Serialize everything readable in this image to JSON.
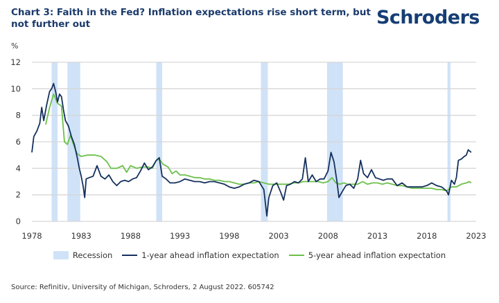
{
  "header": {
    "title": "Chart 3: Faith in the Fed? Inflation expectations rise short term, but not further out",
    "logo": "Schroders"
  },
  "footer": {
    "source": "Source: Refinitiv, University of Michigan, Schroders, 2 August 2022. 605742"
  },
  "colors": {
    "one_year": "#14305e",
    "five_year": "#6cc04a",
    "recession": "#cfe2f7",
    "grid": "#d6d6d6"
  },
  "chart_data": {
    "type": "line",
    "title": "Chart 3: Faith in the Fed? Inflation expectations rise short term, but not further out",
    "ylabel": "%",
    "xlabel": "",
    "xlim": [
      1978,
      2023
    ],
    "ylim": [
      0,
      12
    ],
    "x_ticks": [
      "1978",
      "1983",
      "1988",
      "1993",
      "1998",
      "2003",
      "2008",
      "2013",
      "2018",
      "2023"
    ],
    "y_ticks": [
      "0",
      "2",
      "4",
      "6",
      "8",
      "10",
      "12"
    ],
    "grid": "horizontal",
    "legend_position": "bottom",
    "legend": [
      "Recession",
      "1-year ahead inflation expectation",
      "5-year ahead inflation expectation"
    ],
    "recessions": [
      [
        1980.0,
        1980.6
      ],
      [
        1981.6,
        1982.9
      ],
      [
        1990.6,
        1991.2
      ],
      [
        2001.2,
        2001.9
      ],
      [
        2007.9,
        2009.5
      ],
      [
        2020.1,
        2020.4
      ]
    ],
    "series": [
      {
        "name": "1-year ahead inflation expectation",
        "points": [
          [
            1978.0,
            5.2
          ],
          [
            1978.2,
            6.4
          ],
          [
            1978.5,
            6.8
          ],
          [
            1978.8,
            7.4
          ],
          [
            1979.0,
            8.6
          ],
          [
            1979.2,
            7.6
          ],
          [
            1979.5,
            8.8
          ],
          [
            1979.8,
            9.8
          ],
          [
            1980.0,
            10.0
          ],
          [
            1980.2,
            10.4
          ],
          [
            1980.4,
            9.8
          ],
          [
            1980.6,
            9.0
          ],
          [
            1980.8,
            9.6
          ],
          [
            1981.0,
            9.4
          ],
          [
            1981.2,
            8.4
          ],
          [
            1981.4,
            7.6
          ],
          [
            1981.7,
            7.2
          ],
          [
            1982.0,
            6.4
          ],
          [
            1982.3,
            5.8
          ],
          [
            1982.6,
            4.8
          ],
          [
            1982.8,
            4.0
          ],
          [
            1983.0,
            3.4
          ],
          [
            1983.2,
            2.6
          ],
          [
            1983.35,
            1.8
          ],
          [
            1983.5,
            3.2
          ],
          [
            1983.8,
            3.3
          ],
          [
            1984.2,
            3.4
          ],
          [
            1984.6,
            4.2
          ],
          [
            1985.0,
            3.4
          ],
          [
            1985.4,
            3.2
          ],
          [
            1985.8,
            3.5
          ],
          [
            1986.2,
            3.0
          ],
          [
            1986.6,
            2.7
          ],
          [
            1987.0,
            3.0
          ],
          [
            1987.4,
            3.1
          ],
          [
            1987.8,
            3.0
          ],
          [
            1988.2,
            3.2
          ],
          [
            1988.6,
            3.3
          ],
          [
            1989.0,
            3.8
          ],
          [
            1989.4,
            4.4
          ],
          [
            1989.8,
            3.9
          ],
          [
            1990.2,
            4.1
          ],
          [
            1990.6,
            4.6
          ],
          [
            1990.9,
            4.8
          ],
          [
            1991.2,
            3.4
          ],
          [
            1991.6,
            3.2
          ],
          [
            1992.0,
            2.9
          ],
          [
            1992.5,
            2.9
          ],
          [
            1993.0,
            3.0
          ],
          [
            1993.5,
            3.2
          ],
          [
            1994.0,
            3.1
          ],
          [
            1994.5,
            3.0
          ],
          [
            1995.0,
            3.0
          ],
          [
            1995.5,
            2.9
          ],
          [
            1996.0,
            3.0
          ],
          [
            1996.5,
            3.0
          ],
          [
            1997.0,
            2.9
          ],
          [
            1997.5,
            2.8
          ],
          [
            1998.0,
            2.6
          ],
          [
            1998.5,
            2.5
          ],
          [
            1999.0,
            2.6
          ],
          [
            1999.5,
            2.8
          ],
          [
            2000.0,
            2.9
          ],
          [
            2000.5,
            3.1
          ],
          [
            2001.0,
            3.0
          ],
          [
            2001.5,
            2.4
          ],
          [
            2001.8,
            0.4
          ],
          [
            2002.0,
            1.8
          ],
          [
            2002.4,
            2.7
          ],
          [
            2002.8,
            2.9
          ],
          [
            2003.2,
            2.2
          ],
          [
            2003.5,
            1.6
          ],
          [
            2003.8,
            2.7
          ],
          [
            2004.2,
            2.8
          ],
          [
            2004.6,
            3.0
          ],
          [
            2005.0,
            2.9
          ],
          [
            2005.4,
            3.2
          ],
          [
            2005.7,
            4.8
          ],
          [
            2006.0,
            3.0
          ],
          [
            2006.4,
            3.5
          ],
          [
            2006.8,
            3.0
          ],
          [
            2007.2,
            3.2
          ],
          [
            2007.6,
            3.2
          ],
          [
            2008.0,
            3.8
          ],
          [
            2008.3,
            5.2
          ],
          [
            2008.6,
            4.5
          ],
          [
            2008.9,
            3.0
          ],
          [
            2009.1,
            1.8
          ],
          [
            2009.4,
            2.2
          ],
          [
            2009.8,
            2.7
          ],
          [
            2010.2,
            2.8
          ],
          [
            2010.6,
            2.5
          ],
          [
            2011.0,
            3.2
          ],
          [
            2011.3,
            4.6
          ],
          [
            2011.6,
            3.6
          ],
          [
            2012.0,
            3.3
          ],
          [
            2012.4,
            3.9
          ],
          [
            2012.8,
            3.3
          ],
          [
            2013.2,
            3.2
          ],
          [
            2013.6,
            3.1
          ],
          [
            2014.0,
            3.2
          ],
          [
            2014.5,
            3.2
          ],
          [
            2015.0,
            2.7
          ],
          [
            2015.5,
            2.9
          ],
          [
            2016.0,
            2.6
          ],
          [
            2016.5,
            2.6
          ],
          [
            2017.0,
            2.6
          ],
          [
            2017.5,
            2.6
          ],
          [
            2018.0,
            2.7
          ],
          [
            2018.5,
            2.9
          ],
          [
            2019.0,
            2.7
          ],
          [
            2019.5,
            2.6
          ],
          [
            2020.0,
            2.3
          ],
          [
            2020.2,
            2.0
          ],
          [
            2020.5,
            3.1
          ],
          [
            2020.8,
            2.8
          ],
          [
            2021.0,
            3.3
          ],
          [
            2021.2,
            4.6
          ],
          [
            2021.5,
            4.7
          ],
          [
            2021.8,
            4.9
          ],
          [
            2022.0,
            5.0
          ],
          [
            2022.2,
            5.4
          ],
          [
            2022.5,
            5.2
          ]
        ]
      },
      {
        "name": "5-year ahead inflation expectation",
        "points": [
          [
            1979.4,
            7.3
          ],
          [
            1979.8,
            8.6
          ],
          [
            1980.2,
            9.6
          ],
          [
            1980.6,
            8.9
          ],
          [
            1981.0,
            8.7
          ],
          [
            1981.3,
            6.0
          ],
          [
            1981.6,
            5.8
          ],
          [
            1981.9,
            6.5
          ],
          [
            1982.3,
            5.6
          ],
          [
            1982.6,
            5.1
          ],
          [
            1983.0,
            4.9
          ],
          [
            1983.6,
            5.0
          ],
          [
            1984.4,
            5.0
          ],
          [
            1985.0,
            4.9
          ],
          [
            1985.6,
            4.5
          ],
          [
            1986.0,
            4.0
          ],
          [
            1986.6,
            4.0
          ],
          [
            1987.2,
            4.2
          ],
          [
            1987.6,
            3.7
          ],
          [
            1988.0,
            4.2
          ],
          [
            1988.6,
            4.0
          ],
          [
            1989.2,
            4.1
          ],
          [
            1989.8,
            4.1
          ],
          [
            1990.2,
            4.0
          ],
          [
            1990.6,
            4.6
          ],
          [
            1990.9,
            4.7
          ],
          [
            1991.3,
            4.3
          ],
          [
            1991.8,
            4.1
          ],
          [
            1992.2,
            3.6
          ],
          [
            1992.6,
            3.8
          ],
          [
            1993.0,
            3.5
          ],
          [
            1993.5,
            3.5
          ],
          [
            1994.0,
            3.4
          ],
          [
            1994.5,
            3.3
          ],
          [
            1995.0,
            3.3
          ],
          [
            1995.5,
            3.2
          ],
          [
            1996.0,
            3.2
          ],
          [
            1996.5,
            3.1
          ],
          [
            1997.0,
            3.1
          ],
          [
            1997.5,
            3.0
          ],
          [
            1998.0,
            3.0
          ],
          [
            1998.5,
            2.9
          ],
          [
            1999.0,
            2.8
          ],
          [
            1999.5,
            2.8
          ],
          [
            2000.0,
            2.9
          ],
          [
            2000.5,
            2.9
          ],
          [
            2001.0,
            3.0
          ],
          [
            2001.5,
            2.9
          ],
          [
            2002.0,
            2.8
          ],
          [
            2002.5,
            2.8
          ],
          [
            2003.0,
            2.8
          ],
          [
            2003.5,
            2.8
          ],
          [
            2004.0,
            2.8
          ],
          [
            2004.5,
            2.9
          ],
          [
            2005.0,
            2.9
          ],
          [
            2005.5,
            3.0
          ],
          [
            2006.0,
            3.0
          ],
          [
            2006.5,
            3.0
          ],
          [
            2007.0,
            3.0
          ],
          [
            2007.5,
            2.9
          ],
          [
            2008.0,
            3.0
          ],
          [
            2008.4,
            3.3
          ],
          [
            2008.8,
            2.9
          ],
          [
            2009.2,
            2.8
          ],
          [
            2009.6,
            2.9
          ],
          [
            2010.0,
            2.8
          ],
          [
            2010.5,
            2.8
          ],
          [
            2011.0,
            2.8
          ],
          [
            2011.5,
            3.0
          ],
          [
            2012.0,
            2.8
          ],
          [
            2012.5,
            2.9
          ],
          [
            2013.0,
            2.9
          ],
          [
            2013.5,
            2.8
          ],
          [
            2014.0,
            2.9
          ],
          [
            2014.5,
            2.8
          ],
          [
            2015.0,
            2.7
          ],
          [
            2015.5,
            2.7
          ],
          [
            2016.0,
            2.6
          ],
          [
            2016.5,
            2.5
          ],
          [
            2017.0,
            2.5
          ],
          [
            2017.5,
            2.5
          ],
          [
            2018.0,
            2.5
          ],
          [
            2018.5,
            2.5
          ],
          [
            2019.0,
            2.4
          ],
          [
            2019.5,
            2.4
          ],
          [
            2020.0,
            2.3
          ],
          [
            2020.5,
            2.6
          ],
          [
            2021.0,
            2.6
          ],
          [
            2021.5,
            2.8
          ],
          [
            2022.0,
            2.9
          ],
          [
            2022.3,
            3.0
          ],
          [
            2022.5,
            2.9
          ]
        ]
      }
    ]
  }
}
